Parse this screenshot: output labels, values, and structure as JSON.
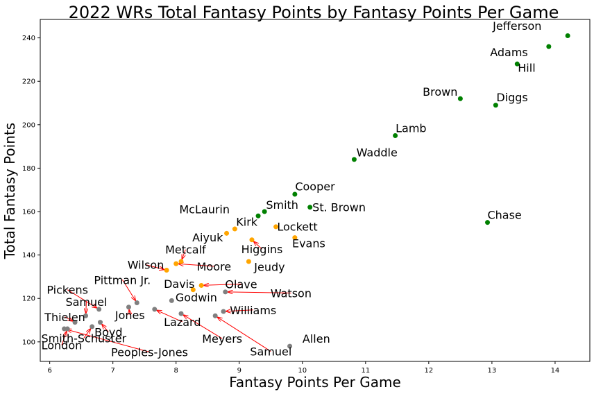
{
  "chart_data": {
    "type": "scatter",
    "title": "2022 WRs Total Fantasy Points by Fantasy Points Per Game",
    "xlabel": "Fantasy Points Per Game",
    "ylabel": "Total Fantasy Points",
    "xlim": [
      5.85,
      14.55
    ],
    "ylim": [
      91,
      248.5
    ],
    "xticks": [
      6,
      7,
      8,
      9,
      10,
      11,
      12,
      13,
      14
    ],
    "yticks": [
      100,
      120,
      140,
      160,
      180,
      200,
      220,
      240
    ],
    "grid": false,
    "colors": {
      "top": "#008000",
      "mid": "#ffa500",
      "low": "#808080",
      "arrow": "#ff0000"
    },
    "points": [
      {
        "name": "Jefferson",
        "x": 14.2,
        "y": 241,
        "group": "top",
        "lx": 13.4,
        "ly": 243.7,
        "anchor": "middle",
        "arrow": false
      },
      {
        "name": "Adams",
        "x": 13.9,
        "y": 236,
        "group": "top",
        "lx": 13.27,
        "ly": 231.5,
        "anchor": "middle",
        "arrow": false
      },
      {
        "name": "Hill",
        "x": 13.4,
        "y": 228,
        "group": "top",
        "lx": 13.55,
        "ly": 224.3,
        "anchor": "middle",
        "arrow": false
      },
      {
        "name": "Brown",
        "x": 12.5,
        "y": 212,
        "group": "top",
        "lx": 12.18,
        "ly": 213.4,
        "anchor": "middle",
        "arrow": false
      },
      {
        "name": "Diggs",
        "x": 13.06,
        "y": 209,
        "group": "top",
        "lx": 13.32,
        "ly": 210.8,
        "anchor": "middle",
        "arrow": false
      },
      {
        "name": "Lamb",
        "x": 11.47,
        "y": 195,
        "group": "top",
        "lx": 11.72,
        "ly": 196.6,
        "anchor": "middle",
        "arrow": false
      },
      {
        "name": "Waddle",
        "x": 10.82,
        "y": 184,
        "group": "top",
        "lx": 11.18,
        "ly": 185.4,
        "anchor": "middle",
        "arrow": false
      },
      {
        "name": "Cooper",
        "x": 9.88,
        "y": 168,
        "group": "top",
        "lx": 10.2,
        "ly": 169.7,
        "anchor": "middle",
        "arrow": false
      },
      {
        "name": "St. Brown",
        "x": 10.12,
        "y": 162,
        "group": "top",
        "lx": 10.58,
        "ly": 160.2,
        "anchor": "middle",
        "arrow": false
      },
      {
        "name": "Smith",
        "x": 9.4,
        "y": 160,
        "group": "top",
        "lx": 9.68,
        "ly": 161.3,
        "anchor": "middle",
        "arrow": false
      },
      {
        "name": "McLaurin",
        "x": 9.3,
        "y": 158,
        "group": "top",
        "lx": 8.45,
        "ly": 159.2,
        "anchor": "middle",
        "arrow": false
      },
      {
        "name": "Chase",
        "x": 12.93,
        "y": 155,
        "group": "top",
        "lx": 13.2,
        "ly": 156.6,
        "anchor": "middle",
        "arrow": false
      },
      {
        "name": "Kirk",
        "x": 8.93,
        "y": 152,
        "group": "mid",
        "lx": 9.12,
        "ly": 153.4,
        "anchor": "middle",
        "arrow": false
      },
      {
        "name": "Lockett",
        "x": 9.58,
        "y": 153,
        "group": "mid",
        "lx": 9.92,
        "ly": 151.2,
        "anchor": "middle",
        "arrow": false
      },
      {
        "name": "Aiyuk",
        "x": 8.8,
        "y": 150,
        "group": "mid",
        "lx": 8.5,
        "ly": 146.3,
        "anchor": "middle",
        "arrow": false
      },
      {
        "name": "Evans",
        "x": 9.88,
        "y": 148,
        "group": "mid",
        "lx": 10.1,
        "ly": 143.5,
        "anchor": "middle",
        "arrow": false
      },
      {
        "name": "Higgins",
        "x": 9.2,
        "y": 147,
        "group": "mid",
        "lx": 9.36,
        "ly": 140.8,
        "anchor": "middle",
        "arrow": true
      },
      {
        "name": "Metcalf",
        "x": 8.08,
        "y": 137,
        "group": "mid",
        "lx": 8.15,
        "ly": 140.6,
        "anchor": "middle",
        "arrow": true
      },
      {
        "name": "Moore",
        "x": 8.0,
        "y": 136,
        "group": "mid",
        "lx": 8.6,
        "ly": 132.9,
        "anchor": "middle",
        "arrow": true
      },
      {
        "name": "Jeudy",
        "x": 9.15,
        "y": 137,
        "group": "mid",
        "lx": 9.48,
        "ly": 132.7,
        "anchor": "middle",
        "arrow": false
      },
      {
        "name": "Wilson",
        "x": 7.85,
        "y": 133,
        "group": "mid",
        "lx": 7.52,
        "ly": 133.6,
        "anchor": "middle",
        "arrow": true
      },
      {
        "name": "Pittman Jr.",
        "x": 7.38,
        "y": 118,
        "group": "low",
        "lx": 7.15,
        "ly": 126.7,
        "anchor": "middle",
        "arrow": true
      },
      {
        "name": "Davis",
        "x": 8.27,
        "y": 124,
        "group": "mid",
        "lx": 8.05,
        "ly": 124.9,
        "anchor": "middle",
        "arrow": false
      },
      {
        "name": "Olave",
        "x": 8.4,
        "y": 126,
        "group": "mid",
        "lx": 9.03,
        "ly": 124.7,
        "anchor": "middle",
        "arrow": true
      },
      {
        "name": "Watson",
        "x": 8.78,
        "y": 123,
        "group": "low",
        "lx": 9.82,
        "ly": 120.6,
        "anchor": "middle",
        "arrow": true
      },
      {
        "name": "Pickens",
        "x": 6.78,
        "y": 115,
        "group": "low",
        "lx": 6.28,
        "ly": 122.1,
        "anchor": "middle",
        "arrow": true
      },
      {
        "name": "Godwin",
        "x": 7.93,
        "y": 119,
        "group": "low",
        "lx": 8.32,
        "ly": 118.7,
        "anchor": "middle",
        "arrow": false
      },
      {
        "name": "Samuel",
        "x": 6.57,
        "y": 112,
        "group": "low",
        "lx": 6.58,
        "ly": 116.5,
        "anchor": "middle",
        "arrow": true
      },
      {
        "name": "Jones",
        "x": 7.25,
        "y": 116,
        "group": "low",
        "lx": 7.27,
        "ly": 110.5,
        "anchor": "middle",
        "arrow": true
      },
      {
        "name": "Williams",
        "x": 8.75,
        "y": 114,
        "group": "low",
        "lx": 9.22,
        "ly": 112.8,
        "anchor": "middle",
        "arrow": true
      },
      {
        "name": "Thielen",
        "x": 6.4,
        "y": 109,
        "group": "low",
        "lx": 6.24,
        "ly": 109.6,
        "anchor": "middle",
        "arrow": true
      },
      {
        "name": "Lazard",
        "x": 7.66,
        "y": 115,
        "group": "low",
        "lx": 8.1,
        "ly": 107.3,
        "anchor": "middle",
        "arrow": true
      },
      {
        "name": "Boyd",
        "x": 6.8,
        "y": 109,
        "group": "low",
        "lx": 6.93,
        "ly": 102.6,
        "anchor": "middle",
        "arrow": true
      },
      {
        "name": "Smith-Schuster",
        "x": 6.67,
        "y": 107,
        "group": "low",
        "lx": 6.54,
        "ly": 99.8,
        "anchor": "middle",
        "arrow": true
      },
      {
        "name": "Meyers",
        "x": 8.08,
        "y": 113,
        "group": "low",
        "lx": 8.73,
        "ly": 99.6,
        "anchor": "middle",
        "arrow": true
      },
      {
        "name": "Allen",
        "x": 9.8,
        "y": 98,
        "group": "low",
        "lx": 10.22,
        "ly": 99.7,
        "anchor": "middle",
        "arrow": false
      },
      {
        "name": "London",
        "x": 6.28,
        "y": 106,
        "group": "low",
        "lx": 6.19,
        "ly": 96.6,
        "anchor": "middle",
        "arrow": true
      },
      {
        "name": "Samuel",
        "x": 8.62,
        "y": 112,
        "group": "low",
        "lx": 9.5,
        "ly": 93.7,
        "anchor": "middle",
        "arrow": true
      },
      {
        "name": "Peoples-Jones",
        "x": 6.23,
        "y": 106,
        "group": "low",
        "lx": 7.58,
        "ly": 93.4,
        "anchor": "middle",
        "arrow": true
      }
    ]
  }
}
